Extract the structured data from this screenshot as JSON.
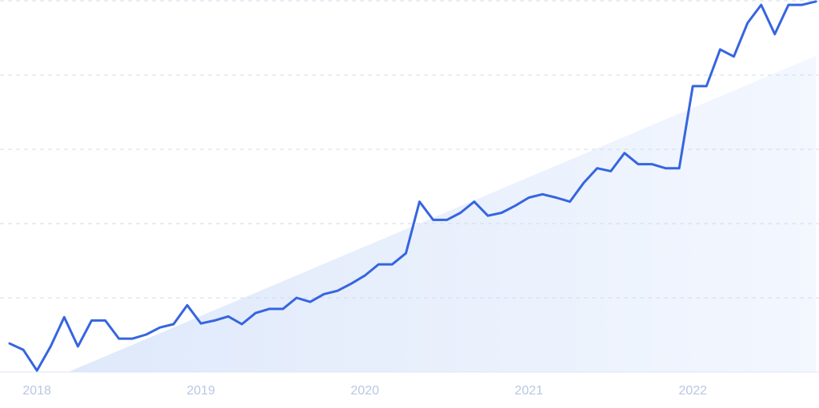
{
  "chart_data": {
    "type": "line",
    "categories": [
      null,
      null,
      "2018",
      null,
      null,
      null,
      null,
      null,
      null,
      null,
      null,
      null,
      null,
      null,
      "2019",
      null,
      null,
      null,
      null,
      null,
      null,
      null,
      null,
      null,
      null,
      null,
      "2020",
      null,
      null,
      null,
      null,
      null,
      null,
      null,
      null,
      null,
      null,
      null,
      "2021",
      null,
      null,
      null,
      null,
      null,
      null,
      null,
      null,
      null,
      null,
      null,
      "2022",
      null,
      null,
      null,
      null,
      null,
      null,
      null,
      null,
      null
    ],
    "values": [
      7.7,
      6.0,
      0.4,
      6.9,
      14.8,
      6.9,
      13.9,
      13.9,
      9.0,
      9.0,
      10.1,
      12.0,
      12.9,
      18.0,
      13.1,
      13.9,
      15.0,
      12.9,
      15.9,
      17.0,
      17.0,
      20.0,
      18.9,
      21.0,
      21.9,
      23.8,
      26.0,
      29.0,
      29.0,
      32.0,
      45.9,
      41.0,
      41.0,
      42.9,
      45.9,
      42.1,
      42.9,
      44.8,
      47.0,
      47.9,
      47.0,
      45.9,
      50.9,
      54.9,
      54.1,
      59.0,
      56.0,
      56.0,
      54.9,
      54.9,
      77.0,
      77.0,
      86.9,
      85.0,
      94.0,
      98.9,
      91.0,
      98.9,
      98.9,
      99.8
    ],
    "color": "#3565e0",
    "ylim": [
      0,
      100
    ],
    "yticks": [
      0,
      20,
      40,
      60,
      80,
      100
    ],
    "grid": true
  }
}
